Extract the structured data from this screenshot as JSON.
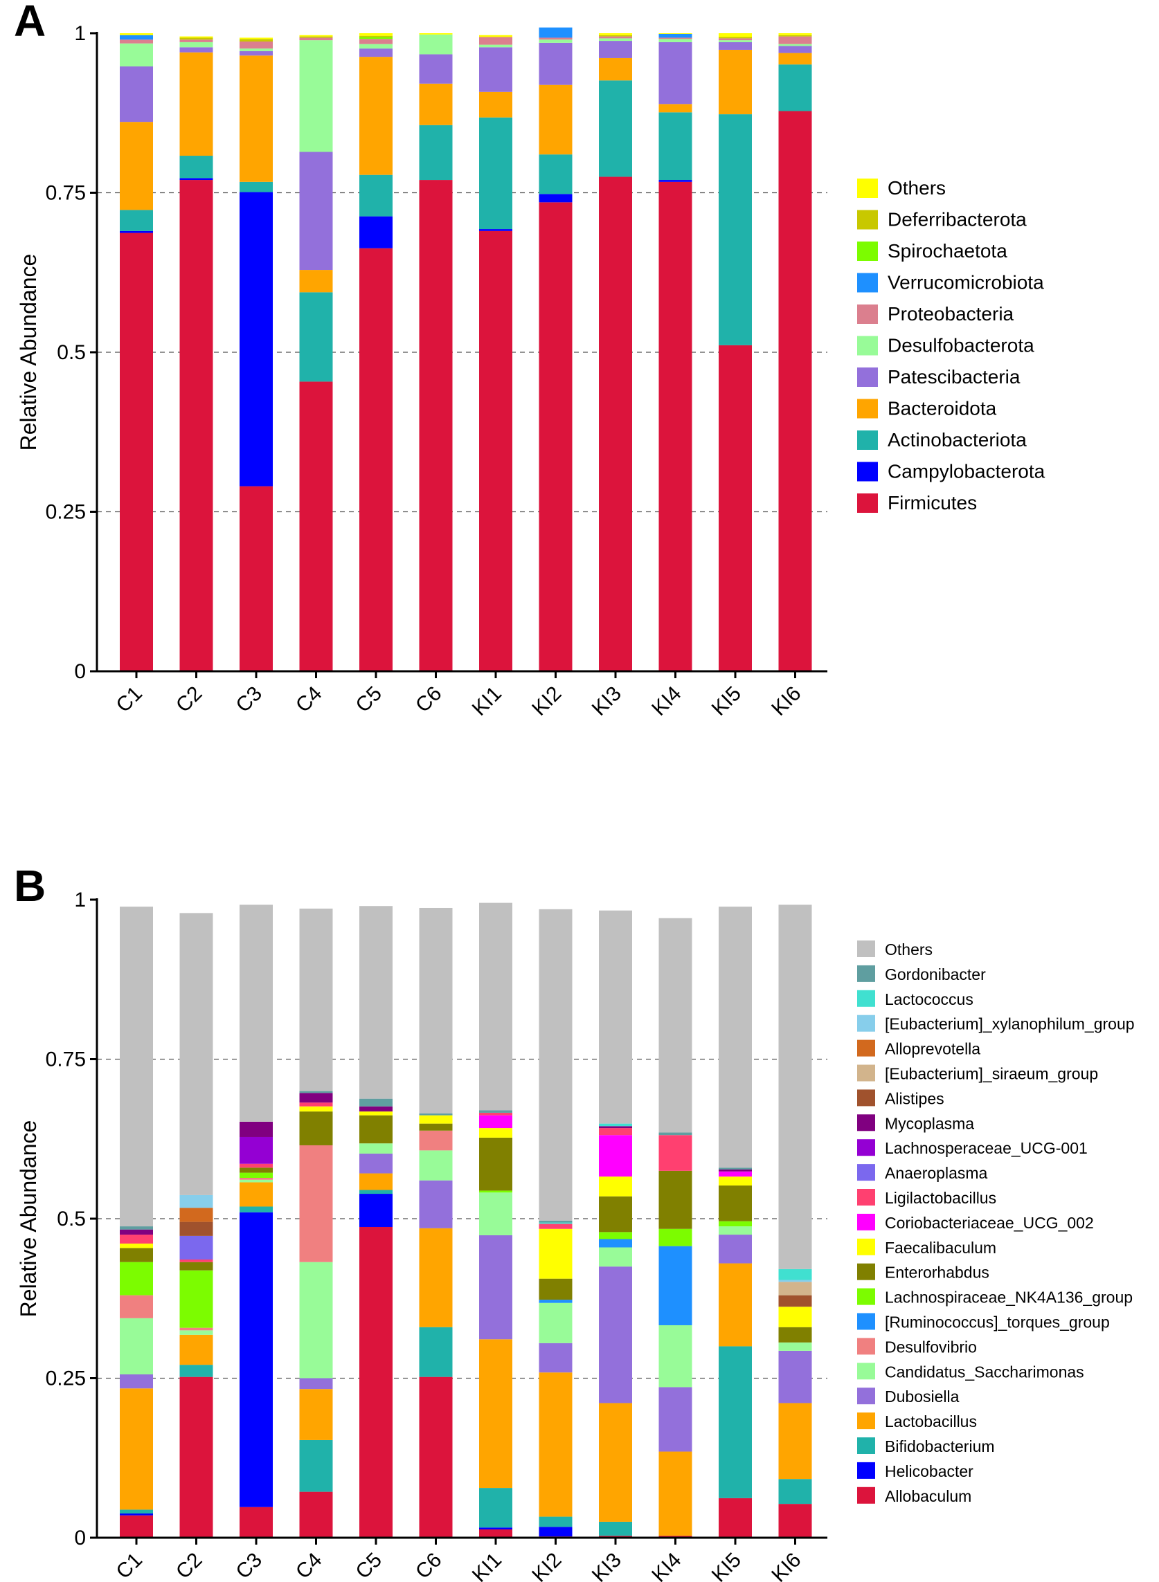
{
  "figure": {
    "panels": [
      "A",
      "B"
    ]
  },
  "chart_data": [
    {
      "panel": "A",
      "type": "bar",
      "stacked": true,
      "title": "",
      "xlabel": "",
      "ylabel": "Relative Abundance",
      "ylim": [
        0,
        1
      ],
      "yticks": [
        0,
        0.25,
        0.5,
        0.75,
        1
      ],
      "ytick_labels": [
        "0",
        "0.25",
        "0.5",
        "0.75",
        "1"
      ],
      "grid": true,
      "legend_position": "right",
      "categories": [
        "C1",
        "C2",
        "C3",
        "C4",
        "C5",
        "C6",
        "KI1",
        "KI2",
        "KI3",
        "KI4",
        "KI5",
        "KI6"
      ],
      "series": [
        {
          "name": "Firmicutes",
          "color": "#DC143C",
          "values": [
            0.687,
            0.77,
            0.29,
            0.454,
            0.663,
            0.77,
            0.69,
            0.735,
            0.775,
            0.767,
            0.511,
            0.878
          ]
        },
        {
          "name": "Campylobacterota",
          "color": "#0000FF",
          "values": [
            0.003,
            0.003,
            0.461,
            0.0,
            0.05,
            0.0,
            0.003,
            0.013,
            0.0,
            0.003,
            0.0,
            0.0
          ]
        },
        {
          "name": "Actinobacteriota",
          "color": "#20B2AA",
          "values": [
            0.033,
            0.035,
            0.016,
            0.14,
            0.065,
            0.086,
            0.175,
            0.062,
            0.151,
            0.106,
            0.362,
            0.073
          ]
        },
        {
          "name": "Bacteroidota",
          "color": "#FFA500",
          "values": [
            0.138,
            0.162,
            0.198,
            0.035,
            0.185,
            0.065,
            0.04,
            0.109,
            0.035,
            0.013,
            0.101,
            0.018
          ]
        },
        {
          "name": "Patescibacteria",
          "color": "#9370DB",
          "values": [
            0.087,
            0.008,
            0.007,
            0.185,
            0.013,
            0.046,
            0.07,
            0.066,
            0.027,
            0.097,
            0.012,
            0.011
          ]
        },
        {
          "name": "Desulfobacterota",
          "color": "#98FB98",
          "values": [
            0.036,
            0.008,
            0.004,
            0.175,
            0.007,
            0.031,
            0.004,
            0.005,
            0.004,
            0.005,
            0.003,
            0.003
          ]
        },
        {
          "name": "Proteobacteria",
          "color": "#DB7F8E",
          "values": [
            0.006,
            0.004,
            0.011,
            0.004,
            0.008,
            0.0,
            0.012,
            0.003,
            0.003,
            0.002,
            0.003,
            0.012
          ]
        },
        {
          "name": "Verrucomicrobiota",
          "color": "#1E90FF",
          "values": [
            0.007,
            0.0,
            0.0,
            0.0,
            0.0,
            0.0,
            0.0,
            0.016,
            0.0,
            0.006,
            0.0,
            0.0
          ]
        },
        {
          "name": "Spirochaetota",
          "color": "#7CFC00",
          "values": [
            0.0,
            0.0,
            0.0,
            0.0,
            0.003,
            0.0,
            0.0,
            0.0,
            0.0,
            0.0,
            0.0,
            0.0
          ]
        },
        {
          "name": "Deferribacterota",
          "color": "#C8C800",
          "values": [
            0.0,
            0.003,
            0.004,
            0.002,
            0.002,
            0.0,
            0.0,
            0.0,
            0.002,
            0.0,
            0.002,
            0.002
          ]
        },
        {
          "name": "Others",
          "color": "#FFFF00",
          "values": [
            0.003,
            0.002,
            0.002,
            0.002,
            0.004,
            0.002,
            0.003,
            0.0,
            0.003,
            0.001,
            0.006,
            0.003
          ]
        }
      ],
      "legend_order": [
        "Others",
        "Deferribacterota",
        "Spirochaetota",
        "Verrucomicrobiota",
        "Proteobacteria",
        "Desulfobacterota",
        "Patescibacteria",
        "Bacteroidota",
        "Actinobacteriota",
        "Campylobacterota",
        "Firmicutes"
      ]
    },
    {
      "panel": "B",
      "type": "bar",
      "stacked": true,
      "title": "",
      "xlabel": "",
      "ylabel": "Relative Abundance",
      "ylim": [
        0,
        1
      ],
      "yticks": [
        0,
        0.25,
        0.5,
        0.75,
        1
      ],
      "ytick_labels": [
        "0",
        "0.25",
        "0.5",
        "0.75",
        "1"
      ],
      "grid": true,
      "legend_position": "right",
      "categories": [
        "C1",
        "C2",
        "C3",
        "C4",
        "C5",
        "C6",
        "KI1",
        "KI2",
        "KI3",
        "KI4",
        "KI5",
        "KI6"
      ],
      "series": [
        {
          "name": "Allobaculum",
          "color": "#DC143C",
          "values": [
            0.035,
            0.252,
            0.048,
            0.072,
            0.487,
            0.252,
            0.013,
            0.002,
            0.003,
            0.003,
            0.062,
            0.053
          ]
        },
        {
          "name": "Helicobacter",
          "color": "#0000FF",
          "values": [
            0.003,
            0.0,
            0.462,
            0.0,
            0.052,
            0.0,
            0.003,
            0.015,
            0.0,
            0.0,
            0.0,
            0.0
          ]
        },
        {
          "name": "Bifidobacterium",
          "color": "#20B2AA",
          "values": [
            0.006,
            0.019,
            0.009,
            0.081,
            0.006,
            0.078,
            0.062,
            0.016,
            0.022,
            0.0,
            0.238,
            0.039
          ]
        },
        {
          "name": "Lactobacillus",
          "color": "#FFA500",
          "values": [
            0.19,
            0.047,
            0.038,
            0.08,
            0.026,
            0.155,
            0.233,
            0.226,
            0.186,
            0.132,
            0.13,
            0.119
          ]
        },
        {
          "name": "Dubosiella",
          "color": "#9370DB",
          "values": [
            0.022,
            0.0,
            0.0,
            0.017,
            0.031,
            0.075,
            0.163,
            0.046,
            0.214,
            0.101,
            0.045,
            0.082
          ]
        },
        {
          "name": "Candidatus_Saccharimonas",
          "color": "#98FB98",
          "values": [
            0.088,
            0.007,
            0.004,
            0.182,
            0.016,
            0.047,
            0.067,
            0.063,
            0.03,
            0.097,
            0.013,
            0.013
          ]
        },
        {
          "name": "Desulfovibrio",
          "color": "#F08080",
          "values": [
            0.036,
            0.004,
            0.003,
            0.183,
            0.0,
            0.031,
            0.0,
            0.0,
            0.0,
            0.0,
            0.0,
            0.0
          ]
        },
        {
          "name": "[Ruminococcus]_torques_group",
          "color": "#1E90FF",
          "values": [
            0.0,
            0.0,
            0.0,
            0.0,
            0.0,
            0.0,
            0.0,
            0.005,
            0.013,
            0.124,
            0.0,
            0.0
          ]
        },
        {
          "name": "Lachnospiraceae_NK4A136_group",
          "color": "#7CFC00",
          "values": [
            0.052,
            0.09,
            0.008,
            0.0,
            0.0,
            0.0,
            0.003,
            0.0,
            0.011,
            0.027,
            0.008,
            0.0
          ]
        },
        {
          "name": "Enterorhabdus",
          "color": "#808000",
          "values": [
            0.022,
            0.013,
            0.008,
            0.053,
            0.044,
            0.011,
            0.083,
            0.033,
            0.056,
            0.091,
            0.056,
            0.024
          ]
        },
        {
          "name": "Faecalibaculum",
          "color": "#FFFF00",
          "values": [
            0.007,
            0.0,
            0.0,
            0.008,
            0.006,
            0.013,
            0.015,
            0.078,
            0.031,
            0.0,
            0.014,
            0.032
          ]
        },
        {
          "name": "Coriobacteriaceae_UCG_002",
          "color": "#FF00FF",
          "values": [
            0.0,
            0.0,
            0.0,
            0.0,
            0.0,
            0.0,
            0.02,
            0.0,
            0.065,
            0.0,
            0.008,
            0.0
          ]
        },
        {
          "name": "Ligilactobacillus",
          "color": "#FF4070",
          "values": [
            0.014,
            0.004,
            0.006,
            0.006,
            0.0,
            0.0,
            0.004,
            0.008,
            0.011,
            0.056,
            0.0,
            0.0
          ]
        },
        {
          "name": "Anaeroplasma",
          "color": "#7B68EE",
          "values": [
            0.0,
            0.037,
            0.0,
            0.0,
            0.0,
            0.0,
            0.0,
            0.0,
            0.0,
            0.0,
            0.0,
            0.0
          ]
        },
        {
          "name": "Lachnosperaceae_UCG-001",
          "color": "#9400D3",
          "values": [
            0.0,
            0.0,
            0.042,
            0.0,
            0.0,
            0.0,
            0.0,
            0.0,
            0.0,
            0.0,
            0.0,
            0.0
          ]
        },
        {
          "name": "Mycoplasma",
          "color": "#800080",
          "values": [
            0.008,
            0.0,
            0.024,
            0.015,
            0.008,
            0.0,
            0.0,
            0.0,
            0.003,
            0.0,
            0.003,
            0.0
          ]
        },
        {
          "name": "Alistipes",
          "color": "#A0522D",
          "values": [
            0.0,
            0.022,
            0.0,
            0.0,
            0.0,
            0.0,
            0.0,
            0.0,
            0.0,
            0.0,
            0.0,
            0.018
          ]
        },
        {
          "name": "[Eubacterium]_siraeum_group",
          "color": "#D2B48C",
          "values": [
            0.0,
            0.0,
            0.0,
            0.0,
            0.0,
            0.0,
            0.0,
            0.0,
            0.0,
            0.0,
            0.0,
            0.021
          ]
        },
        {
          "name": "Alloprevotella",
          "color": "#D2691E",
          "values": [
            0.0,
            0.022,
            0.0,
            0.0,
            0.0,
            0.0,
            0.0,
            0.0,
            0.0,
            0.0,
            0.0,
            0.0
          ]
        },
        {
          "name": "[Eubacterium]_xylanophilum_group",
          "color": "#87CEEB",
          "values": [
            0.0,
            0.02,
            0.0,
            0.0,
            0.0,
            0.0,
            0.0,
            0.0,
            0.0,
            0.0,
            0.0,
            0.003
          ]
        },
        {
          "name": "Lactococcus",
          "color": "#40E0D0",
          "values": [
            0.0,
            0.0,
            0.0,
            0.0,
            0.0,
            0.0,
            0.0,
            0.002,
            0.004,
            0.0,
            0.0,
            0.017
          ]
        },
        {
          "name": "Gordonibacter",
          "color": "#5F9EA0",
          "values": [
            0.005,
            0.0,
            0.0,
            0.003,
            0.012,
            0.003,
            0.004,
            0.003,
            0.0,
            0.004,
            0.003,
            0.0
          ]
        },
        {
          "name": "Others",
          "color": "#C0C0C0",
          "values": [
            0.501,
            0.442,
            0.34,
            0.286,
            0.302,
            0.322,
            0.325,
            0.488,
            0.334,
            0.336,
            0.409,
            0.571
          ]
        }
      ],
      "legend_order": [
        "Others",
        "Gordonibacter",
        "Lactococcus",
        "[Eubacterium]_xylanophilum_group",
        "Alloprevotella",
        "[Eubacterium]_siraeum_group",
        "Alistipes",
        "Mycoplasma",
        "Lachnosperaceae_UCG-001",
        "Anaeroplasma",
        "Ligilactobacillus",
        "Coriobacteriaceae_UCG_002",
        "Faecalibaculum",
        "Enterorhabdus",
        "Lachnospiraceae_NK4A136_group",
        "[Ruminococcus]_torques_group",
        "Desulfovibrio",
        "Candidatus_Saccharimonas",
        "Dubosiella",
        "Lactobacillus",
        "Bifidobacterium",
        "Helicobacter",
        "Allobaculum"
      ]
    }
  ]
}
